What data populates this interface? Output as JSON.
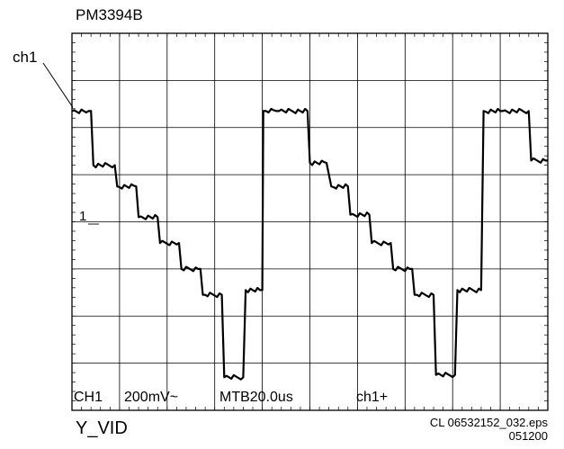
{
  "header": {
    "instrument": "PM3394B"
  },
  "channel_label": "ch1",
  "level_marker": "1",
  "status_bar": {
    "channel": "CH1",
    "volts_per_div": "200mV~",
    "timebase": "MTB20.0us",
    "trigger": "ch1+"
  },
  "footer": {
    "signal_name": "Y_VID",
    "file_name": "CL 06532152_032.eps",
    "date_code": "051200"
  },
  "colors": {
    "trace": "#000000",
    "grid": "#000000",
    "background": "#ffffff"
  },
  "chart_data": {
    "type": "line",
    "title": "PM3394B",
    "grid": true,
    "x_divisions": 10,
    "y_divisions": 8,
    "xlim": [
      0,
      10
    ],
    "ylim": [
      0,
      8
    ],
    "series": [
      {
        "name": "ch1",
        "x": [
          0,
          0.35,
          0.4,
          0.45,
          0.9,
          0.95,
          1.35,
          1.4,
          1.8,
          1.85,
          2.25,
          2.3,
          2.7,
          2.75,
          3.15,
          3.2,
          3.6,
          3.65,
          3.95,
          4.0,
          4.02,
          4.3,
          4.35,
          4.95,
          5.0,
          5.35,
          5.45,
          5.8,
          5.85,
          6.25,
          6.3,
          6.7,
          6.75,
          7.15,
          7.2,
          7.6,
          7.65,
          8.05,
          8.1,
          8.6,
          8.65,
          9.0,
          9.05,
          9.6,
          9.65,
          10.0
        ],
        "y": [
          6.35,
          6.35,
          6.35,
          5.2,
          5.2,
          4.75,
          4.75,
          4.1,
          4.1,
          3.55,
          3.55,
          3.0,
          3.0,
          2.45,
          2.45,
          0.7,
          0.7,
          2.55,
          2.55,
          2.55,
          6.35,
          6.35,
          6.35,
          6.35,
          5.25,
          5.25,
          4.75,
          4.75,
          4.15,
          4.15,
          3.55,
          3.55,
          3.0,
          3.0,
          2.45,
          2.45,
          0.75,
          0.75,
          2.55,
          2.55,
          6.35,
          6.35,
          6.35,
          6.35,
          5.3,
          5.3
        ]
      }
    ]
  }
}
